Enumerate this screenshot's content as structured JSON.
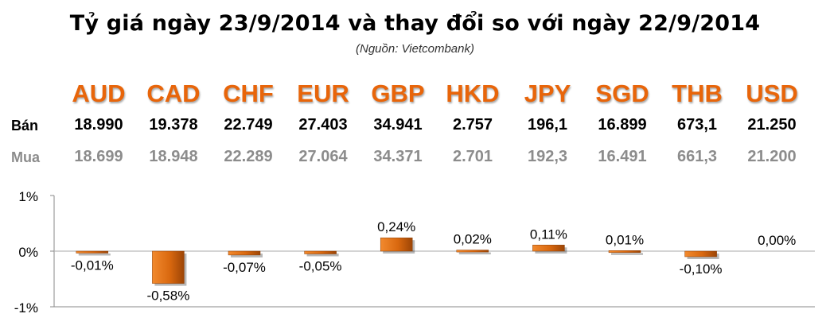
{
  "title": "Tỷ giá ngày 23/9/2014 và thay đổi so với ngày 22/9/2014",
  "source": "(Nguồn: Vietcombank)",
  "labels": {
    "sell": "Bán",
    "buy": "Mua"
  },
  "colors": {
    "accent": "#e8650a",
    "bar": "#d9680f",
    "buy_text": "#8c8c8c"
  },
  "rates": [
    {
      "code": "AUD",
      "sell": "18.990",
      "buy": "18.699"
    },
    {
      "code": "CAD",
      "sell": "19.378",
      "buy": "18.948"
    },
    {
      "code": "CHF",
      "sell": "22.749",
      "buy": "22.289"
    },
    {
      "code": "EUR",
      "sell": "27.403",
      "buy": "27.064"
    },
    {
      "code": "GBP",
      "sell": "34.941",
      "buy": "34.371"
    },
    {
      "code": "HKD",
      "sell": "2.757",
      "buy": "2.701"
    },
    {
      "code": "JPY",
      "sell": "196,1",
      "buy": "192,3"
    },
    {
      "code": "SGD",
      "sell": "16.899",
      "buy": "16.491"
    },
    {
      "code": "THB",
      "sell": "673,1",
      "buy": "661,3"
    },
    {
      "code": "USD",
      "sell": "21.250",
      "buy": "21.200"
    }
  ],
  "chart_data": {
    "type": "bar",
    "categories": [
      "AUD",
      "CAD",
      "CHF",
      "EUR",
      "GBP",
      "HKD",
      "JPY",
      "SGD",
      "THB",
      "USD"
    ],
    "values": [
      -0.01,
      -0.58,
      -0.07,
      -0.05,
      0.24,
      0.02,
      0.11,
      0.01,
      -0.1,
      0.0
    ],
    "data_labels": [
      "-0,01%",
      "-0,58%",
      "-0,07%",
      "-0,05%",
      "0,24%",
      "0,02%",
      "0,11%",
      "0,01%",
      "-0,10%",
      "0,00%"
    ],
    "yticks": [
      1,
      0,
      -1
    ],
    "ytick_labels": [
      "1%",
      "0%",
      "-1%"
    ],
    "ylim": [
      -1,
      1
    ],
    "grid": false,
    "legend": "none"
  }
}
